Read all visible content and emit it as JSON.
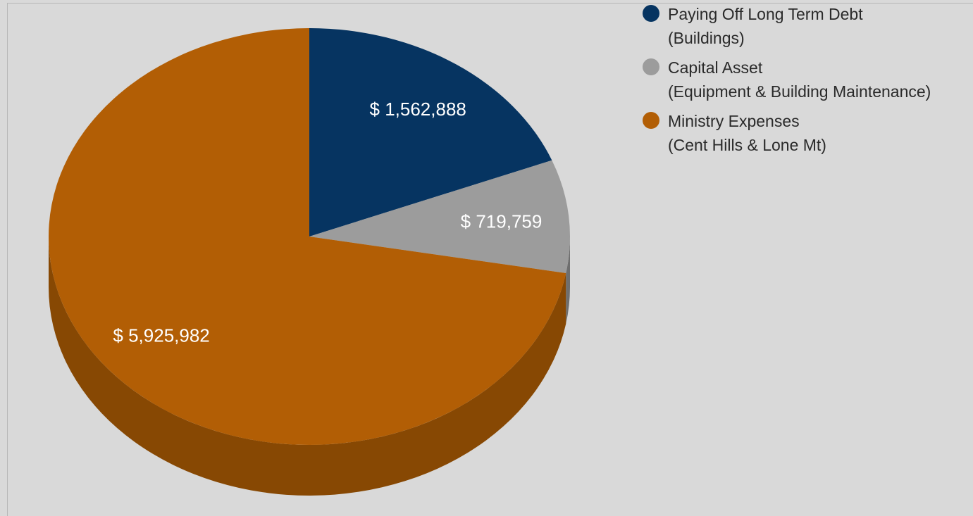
{
  "chart_data": {
    "type": "pie",
    "three_d": true,
    "legend_position": "top-right",
    "start_angle_deg": 0,
    "direction": "clockwise",
    "series": [
      {
        "name_lines": [
          "Paying Off Long Term Debt",
          "(Buildings)"
        ],
        "value": 1562888,
        "value_label": "$ 1,562,888",
        "color": "#063461",
        "side_color": "#04223f"
      },
      {
        "name_lines": [
          "Capital Asset",
          "(Equipment & Building Maintenance)"
        ],
        "value": 719759,
        "value_label": "$ 719,759",
        "color": "#9c9c9c",
        "side_color": "#6e6e6e"
      },
      {
        "name_lines": [
          "Ministry Expenses",
          "(Cent Hills & Lone Mt)"
        ],
        "value": 5925982,
        "value_label": "$ 5,925,982",
        "color": "#b25e05",
        "side_color": "#874803"
      }
    ]
  }
}
